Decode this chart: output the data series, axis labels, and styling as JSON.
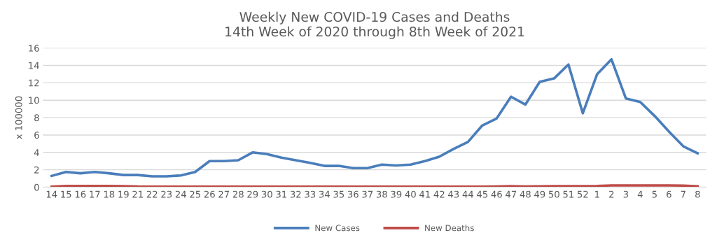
{
  "chart_data": {
    "type": "line",
    "title": "Weekly New COVID-19 Cases and Deaths\n14th Week of 2020 through 8th Week of 2021",
    "ylabel": "x 100000",
    "categories": [
      "14",
      "15",
      "16",
      "17",
      "18",
      "19",
      "21",
      "22",
      "23",
      "24",
      "25",
      "26",
      "27",
      "28",
      "29",
      "30",
      "31",
      "32",
      "33",
      "34",
      "35",
      "36",
      "37",
      "38",
      "39",
      "40",
      "41",
      "42",
      "43",
      "44",
      "45",
      "46",
      "47",
      "48",
      "49",
      "50",
      "51",
      "52",
      "1",
      "2",
      "3",
      "4",
      "5",
      "6",
      "7",
      "8"
    ],
    "series": [
      {
        "name": "New Cases",
        "color": "#4a7ebb",
        "values": [
          1.3,
          1.75,
          1.6,
          1.75,
          1.6,
          1.4,
          1.4,
          1.25,
          1.25,
          1.35,
          1.75,
          3.0,
          3.0,
          3.1,
          4.0,
          3.8,
          3.4,
          3.1,
          2.8,
          2.45,
          2.45,
          2.2,
          2.2,
          2.6,
          2.5,
          2.6,
          3.0,
          3.5,
          4.4,
          5.2,
          7.1,
          7.9,
          10.4,
          9.5,
          12.1,
          12.5,
          14.1,
          8.5,
          13.0,
          14.7,
          10.2,
          9.8,
          8.2,
          6.4,
          4.7,
          3.9
        ]
      },
      {
        "name": "New Deaths",
        "color": "#be4b48",
        "values": [
          0.05,
          0.13,
          0.13,
          0.13,
          0.13,
          0.12,
          0.07,
          0.06,
          0.06,
          0.06,
          0.06,
          0.06,
          0.06,
          0.06,
          0.06,
          0.06,
          0.06,
          0.06,
          0.06,
          0.06,
          0.06,
          0.06,
          0.06,
          0.06,
          0.06,
          0.06,
          0.06,
          0.06,
          0.06,
          0.06,
          0.06,
          0.08,
          0.12,
          0.08,
          0.1,
          0.12,
          0.12,
          0.12,
          0.14,
          0.2,
          0.2,
          0.2,
          0.2,
          0.2,
          0.18,
          0.1
        ]
      }
    ],
    "ylim": [
      0,
      16
    ],
    "yticks": [
      0,
      2,
      4,
      6,
      8,
      10,
      12,
      14,
      16
    ],
    "grid": "y",
    "legend": "bottom",
    "marker": "none",
    "line_style": "solid"
  }
}
